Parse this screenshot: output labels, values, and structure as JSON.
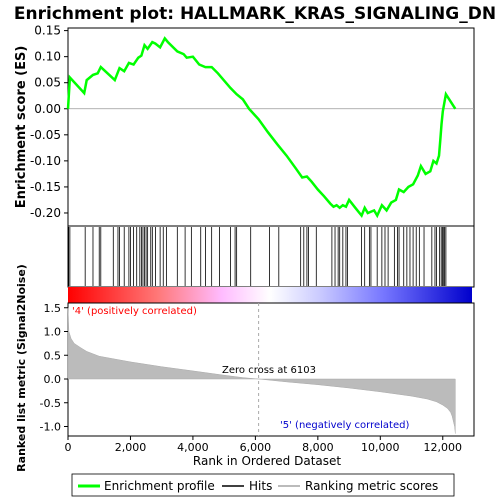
{
  "chart_data": {
    "type": "line",
    "title": "Enrichment plot: HALLMARK_KRAS_SIGNALING_DN",
    "es_panel": {
      "ylabel": "Enrichment score (ES)",
      "ylim": [
        -0.225,
        0.155
      ],
      "yticks": [
        0.15,
        0.1,
        0.05,
        0.0,
        -0.05,
        -0.1,
        -0.15,
        -0.2
      ],
      "ytick_labels": [
        "0.15",
        "0.10",
        "0.05",
        "0.00",
        "-0.05",
        "-0.10",
        "-0.15",
        "-0.20"
      ],
      "series_name": "Enrichment profile",
      "color": "#00ff00",
      "x": [
        0,
        60,
        520,
        600,
        800,
        950,
        1050,
        1500,
        1650,
        1800,
        1950,
        2100,
        2250,
        2350,
        2450,
        2550,
        2700,
        2800,
        2950,
        3100,
        3200,
        3500,
        3700,
        3800,
        4000,
        4200,
        4400,
        4600,
        4800,
        5200,
        5400,
        5600,
        5800,
        6100,
        6400,
        6700,
        7000,
        7300,
        7500,
        7650,
        7800,
        8000,
        8200,
        8400,
        8500,
        8600,
        8700,
        8800,
        8900,
        9000,
        9200,
        9400,
        9500,
        9600,
        9800,
        9900,
        10050,
        10200,
        10350,
        10500,
        10600,
        10750,
        10900,
        11050,
        11200,
        11300,
        11450,
        11600,
        11700,
        11800,
        11880,
        11920,
        11960,
        12000,
        12100,
        12400
      ],
      "y": [
        0.0,
        0.06,
        0.03,
        0.055,
        0.065,
        0.068,
        0.08,
        0.055,
        0.078,
        0.072,
        0.088,
        0.085,
        0.098,
        0.102,
        0.122,
        0.115,
        0.128,
        0.125,
        0.118,
        0.135,
        0.128,
        0.11,
        0.105,
        0.098,
        0.1,
        0.085,
        0.08,
        0.08,
        0.068,
        0.04,
        0.028,
        0.018,
        0.0,
        -0.02,
        -0.045,
        -0.068,
        -0.09,
        -0.115,
        -0.132,
        -0.13,
        -0.14,
        -0.155,
        -0.168,
        -0.182,
        -0.188,
        -0.185,
        -0.19,
        -0.185,
        -0.188,
        -0.175,
        -0.19,
        -0.205,
        -0.19,
        -0.2,
        -0.195,
        -0.205,
        -0.185,
        -0.195,
        -0.18,
        -0.175,
        -0.155,
        -0.16,
        -0.15,
        -0.145,
        -0.128,
        -0.11,
        -0.125,
        -0.12,
        -0.1,
        -0.105,
        -0.09,
        -0.06,
        -0.03,
        -0.005,
        0.028,
        0.0
      ]
    },
    "hits": [
      20,
      60,
      550,
      800,
      1000,
      1050,
      1450,
      1600,
      1650,
      1800,
      1950,
      2000,
      2100,
      2200,
      2300,
      2350,
      2400,
      2450,
      2500,
      2550,
      2650,
      2700,
      2800,
      2950,
      3050,
      3150,
      3500,
      3750,
      3950,
      4250,
      4400,
      4600,
      4850,
      5200,
      5350,
      5400,
      5850,
      6450,
      6750,
      7450,
      7550,
      7650,
      7700,
      7950,
      8450,
      8550,
      8650,
      8700,
      8800,
      8900,
      8950,
      9400,
      9500,
      9650,
      9700,
      9900,
      10050,
      10150,
      10250,
      10450,
      10550,
      10600,
      10750,
      10850,
      10950,
      11050,
      11150,
      11250,
      11400,
      11650,
      11750,
      11800,
      11900,
      11950,
      11990,
      12030,
      12060,
      12100
    ],
    "ranked_panel": {
      "ylabel": "Ranked list metric (Signal2Noise)",
      "xlabel": "Rank in Ordered Dataset",
      "xlim": [
        0,
        13000
      ],
      "ylim": [
        -1.2,
        1.6
      ],
      "xticks": [
        0,
        2000,
        4000,
        6000,
        8000,
        10000,
        12000
      ],
      "xtick_labels": [
        "0",
        "2,000",
        "4,000",
        "6,000",
        "8,000",
        "10,000",
        "12,000"
      ],
      "yticks": [
        1.5,
        1.0,
        0.5,
        0.0,
        -0.5,
        -1.0
      ],
      "ytick_labels": [
        "1.5",
        "1.0",
        "0.5",
        "0.0",
        "-0.5",
        "-1.0"
      ],
      "metric_x": [
        0,
        30,
        100,
        200,
        400,
        600,
        1000,
        2000,
        3000,
        4000,
        5000,
        5600,
        6103,
        7000,
        8000,
        9000,
        10000,
        11000,
        11500,
        11800,
        12000,
        12150,
        12250,
        12300,
        12380,
        12400
      ],
      "metric_y": [
        1.5,
        1.0,
        0.85,
        0.75,
        0.66,
        0.58,
        0.48,
        0.36,
        0.26,
        0.17,
        0.08,
        0.03,
        0.0,
        -0.06,
        -0.12,
        -0.19,
        -0.27,
        -0.36,
        -0.42,
        -0.48,
        -0.55,
        -0.62,
        -0.7,
        -0.78,
        -1.0,
        -1.15
      ],
      "zero_cross_label": "Zero cross at 6103",
      "zero_cross_x": 6103,
      "pos_label": "'4' (positively correlated)",
      "neg_label": "'5' (negatively correlated)",
      "pos_color": "#ff0000",
      "neg_color": "#0000cc"
    },
    "legend": {
      "placement": "bottom",
      "entries": [
        {
          "label": "Enrichment profile",
          "color": "#00ff00"
        },
        {
          "label": "Hits",
          "color": "#000000"
        },
        {
          "label": "Ranking metric scores",
          "color": "#bbbbbb"
        }
      ]
    },
    "n_genes": 12400,
    "grid": false
  }
}
